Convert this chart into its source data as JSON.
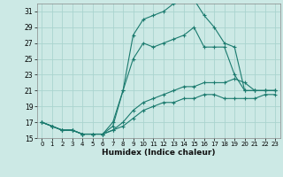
{
  "xlabel": "Humidex (Indice chaleur)",
  "background_color": "#cce9e5",
  "grid_color": "#aad4cf",
  "line_color": "#1a7a6e",
  "xlim": [
    -0.5,
    23.5
  ],
  "ylim": [
    15,
    32
  ],
  "xticks": [
    0,
    1,
    2,
    3,
    4,
    5,
    6,
    7,
    8,
    9,
    10,
    11,
    12,
    13,
    14,
    15,
    16,
    17,
    18,
    19,
    20,
    21,
    22,
    23
  ],
  "yticks": [
    15,
    17,
    19,
    21,
    23,
    25,
    27,
    29,
    31
  ],
  "curves": [
    {
      "x": [
        0,
        1,
        2,
        3,
        4,
        5,
        6,
        7,
        8,
        9,
        10,
        11,
        12,
        13,
        14,
        15,
        16,
        17,
        18,
        19,
        20,
        21,
        22,
        23
      ],
      "y": [
        17,
        16.5,
        16,
        16,
        15.5,
        15.5,
        15.5,
        16,
        16.5,
        17.5,
        18.5,
        19,
        19.5,
        19.5,
        20,
        20,
        20.5,
        20.5,
        20,
        20,
        20,
        20,
        20.5,
        20.5
      ]
    },
    {
      "x": [
        0,
        1,
        2,
        3,
        4,
        5,
        6,
        7,
        8,
        9,
        10,
        11,
        12,
        13,
        14,
        15,
        16,
        17,
        18,
        19,
        20,
        21,
        22,
        23
      ],
      "y": [
        17,
        16.5,
        16,
        16,
        15.5,
        15.5,
        15.5,
        16,
        17,
        18.5,
        19.5,
        20,
        20.5,
        21,
        21.5,
        21.5,
        22,
        22,
        22,
        22.5,
        22,
        21,
        21,
        21
      ]
    },
    {
      "x": [
        0,
        1,
        2,
        3,
        4,
        5,
        6,
        7,
        8,
        9,
        10,
        11,
        12,
        13,
        14,
        15,
        16,
        17,
        18,
        19,
        20,
        21,
        22,
        23
      ],
      "y": [
        17,
        16.5,
        16,
        16,
        15.5,
        15.5,
        15.5,
        17,
        21,
        25,
        27,
        26.5,
        27,
        27.5,
        28,
        29,
        26.5,
        26.5,
        26.5,
        23,
        21,
        21,
        21,
        21
      ]
    },
    {
      "x": [
        0,
        1,
        2,
        3,
        4,
        5,
        6,
        7,
        8,
        9,
        10,
        11,
        12,
        13,
        14,
        15,
        16,
        17,
        18,
        19,
        20,
        21,
        22,
        23
      ],
      "y": [
        17,
        16.5,
        16,
        16,
        15.5,
        15.5,
        15.5,
        16.5,
        21,
        28,
        30,
        30.5,
        31,
        32,
        32.5,
        32.5,
        30.5,
        29,
        27,
        26.5,
        21,
        21,
        21,
        21
      ]
    }
  ]
}
